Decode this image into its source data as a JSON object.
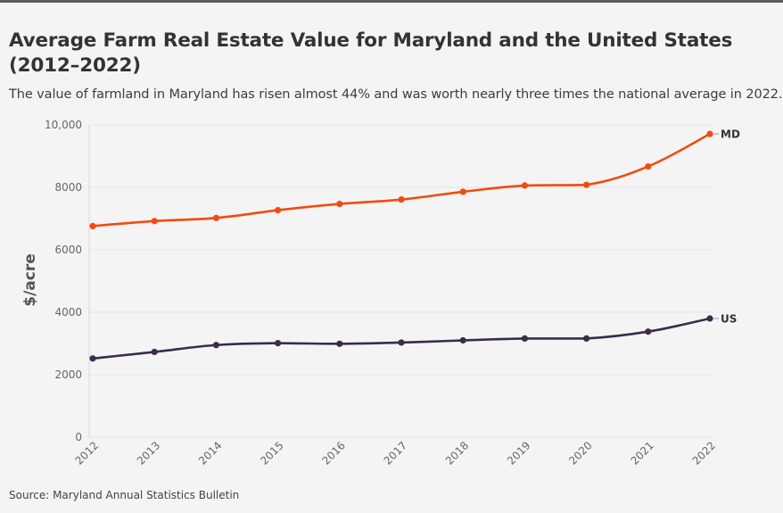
{
  "header": {
    "title": "Average Farm Real Estate Value for Maryland and the United States (2012–2022)",
    "subtitle": "The value of farmland in Maryland has risen almost 44% and was worth nearly three times the national average in 2022."
  },
  "footer": {
    "source": "Source: Maryland Annual Statistics Bulletin"
  },
  "colors": {
    "md": "#f24b0f",
    "us": "#3a2c4a",
    "grid": "#e6e6e6",
    "axis_text": "#666666"
  },
  "chart_data": {
    "type": "line",
    "title": "Average Farm Real Estate Value for Maryland and the United States (2012–2022)",
    "xlabel": "",
    "ylabel": "$/acre",
    "x": [
      "2012",
      "2013",
      "2014",
      "2015",
      "2016",
      "2017",
      "2018",
      "2019",
      "2020",
      "2021",
      "2022"
    ],
    "ylim": [
      0,
      10000
    ],
    "yticks": [
      0,
      2000,
      4000,
      6000,
      8000,
      10000
    ],
    "ytick_labels": [
      "0",
      "2000",
      "4000",
      "6000",
      "8000",
      "10,000"
    ],
    "grid": true,
    "legend": "end-of-line labels",
    "series": [
      {
        "name": "MD",
        "color": "#f24b0f",
        "values": [
          6760,
          6920,
          7020,
          7270,
          7470,
          7610,
          7860,
          8060,
          8080,
          8670,
          9710
        ]
      },
      {
        "name": "US",
        "color": "#3a2c4a",
        "values": [
          2520,
          2730,
          2950,
          3010,
          2990,
          3030,
          3100,
          3160,
          3160,
          3380,
          3800
        ]
      }
    ]
  }
}
